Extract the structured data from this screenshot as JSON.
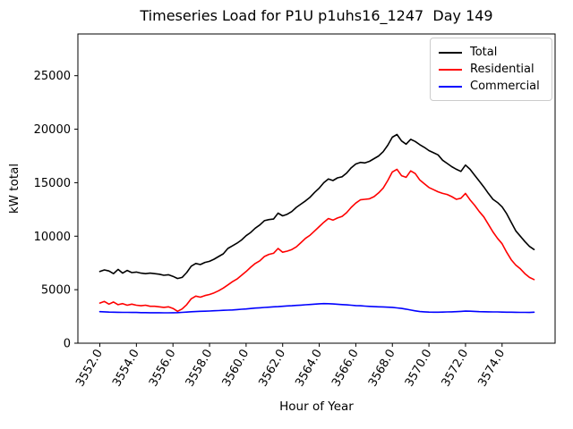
{
  "chart_data": {
    "type": "line",
    "title": "Timeseries Load for P1U p1uhs16_1247  Day 149",
    "xlabel": "Hour of Year",
    "ylabel": "kW total",
    "grid": false,
    "legend_position": "upper right",
    "xlim": [
      3550.8,
      3576.9
    ],
    "ylim": [
      0,
      28900
    ],
    "xtick_values": [
      3552,
      3554,
      3556,
      3558,
      3560,
      3562,
      3564,
      3566,
      3568,
      3570,
      3572,
      3574
    ],
    "xtick_labels": [
      "3552.0",
      "3554.0",
      "3556.0",
      "3558.0",
      "3560.0",
      "3562.0",
      "3564.0",
      "3566.0",
      "3568.0",
      "3570.0",
      "3572.0",
      "3574.0"
    ],
    "xtick_rotation_deg": 60,
    "ytick_values": [
      0,
      5000,
      10000,
      15000,
      20000,
      25000
    ],
    "ytick_labels": [
      "0",
      "5000",
      "10000",
      "15000",
      "20000",
      "25000"
    ],
    "x_start": 3552.0,
    "x_step": 0.25,
    "series": [
      {
        "name": "Total",
        "color": "#000000",
        "values": [
          6700,
          6850,
          6750,
          6500,
          6900,
          6550,
          6800,
          6600,
          6650,
          6550,
          6500,
          6550,
          6500,
          6450,
          6350,
          6400,
          6250,
          6050,
          6150,
          6600,
          7200,
          7450,
          7350,
          7550,
          7650,
          7850,
          8100,
          8350,
          8850,
          9100,
          9350,
          9650,
          10050,
          10350,
          10750,
          11050,
          11450,
          11550,
          11600,
          12150,
          11900,
          12050,
          12300,
          12700,
          13000,
          13300,
          13650,
          14100,
          14500,
          15000,
          15350,
          15200,
          15450,
          15550,
          15900,
          16400,
          16750,
          16900,
          16850,
          17000,
          17250,
          17500,
          17900,
          18500,
          19250,
          19500,
          18900,
          18600,
          19050,
          18850,
          18550,
          18300,
          18000,
          17800,
          17600,
          17100,
          16800,
          16500,
          16250,
          16050,
          16650,
          16250,
          15700,
          15150,
          14600,
          14000,
          13450,
          13150,
          12750,
          12100,
          11300,
          10500,
          10000,
          9500,
          9050,
          8750
        ]
      },
      {
        "name": "Residential",
        "color": "#ff0000",
        "values": [
          3750,
          3900,
          3650,
          3850,
          3600,
          3700,
          3550,
          3650,
          3550,
          3500,
          3550,
          3450,
          3450,
          3400,
          3350,
          3400,
          3250,
          2980,
          3200,
          3600,
          4150,
          4400,
          4300,
          4450,
          4550,
          4700,
          4900,
          5150,
          5450,
          5750,
          6000,
          6350,
          6700,
          7100,
          7450,
          7700,
          8100,
          8300,
          8400,
          8850,
          8500,
          8600,
          8750,
          9000,
          9400,
          9800,
          10100,
          10500,
          10900,
          11300,
          11650,
          11500,
          11700,
          11850,
          12200,
          12700,
          13100,
          13400,
          13450,
          13500,
          13700,
          14050,
          14500,
          15200,
          16000,
          16250,
          15650,
          15500,
          16100,
          15850,
          15250,
          14900,
          14550,
          14350,
          14150,
          14000,
          13900,
          13700,
          13450,
          13550,
          14000,
          13400,
          12900,
          12300,
          11800,
          11100,
          10400,
          9800,
          9300,
          8500,
          7800,
          7300,
          6950,
          6500,
          6150,
          5950
        ]
      },
      {
        "name": "Commercial",
        "color": "#0000ff",
        "values": [
          2950,
          2930,
          2910,
          2900,
          2890,
          2880,
          2880,
          2870,
          2870,
          2860,
          2860,
          2850,
          2850,
          2850,
          2840,
          2840,
          2850,
          2860,
          2880,
          2910,
          2940,
          2960,
          2980,
          2990,
          3010,
          3030,
          3050,
          3070,
          3090,
          3110,
          3140,
          3170,
          3200,
          3240,
          3280,
          3310,
          3340,
          3370,
          3400,
          3420,
          3450,
          3480,
          3500,
          3530,
          3560,
          3590,
          3620,
          3650,
          3680,
          3700,
          3690,
          3670,
          3640,
          3610,
          3580,
          3550,
          3520,
          3500,
          3470,
          3440,
          3420,
          3400,
          3390,
          3370,
          3350,
          3300,
          3250,
          3180,
          3100,
          3020,
          2960,
          2930,
          2910,
          2900,
          2900,
          2910,
          2920,
          2930,
          2950,
          2970,
          3000,
          2990,
          2970,
          2950,
          2940,
          2930,
          2920,
          2920,
          2910,
          2900,
          2900,
          2890,
          2880,
          2880,
          2870,
          2900
        ]
      }
    ]
  }
}
